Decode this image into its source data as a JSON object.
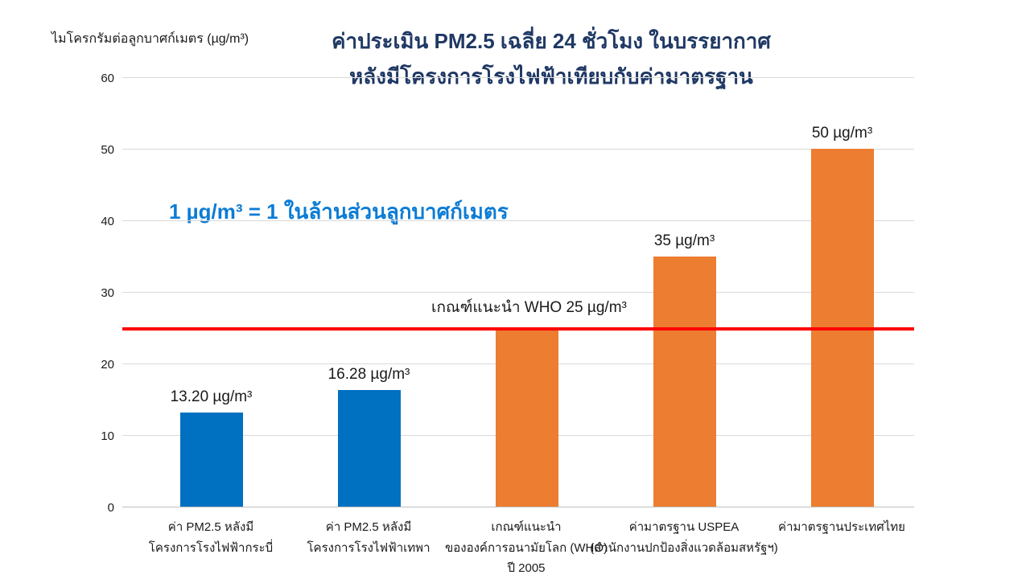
{
  "page": {
    "background": "#FFFFFF"
  },
  "header": {
    "title_line1": "ค่าประเมิน PM2.5 เฉลี่ย 24 ชั่วโมง ในบรรยากาศ",
    "title_line2": "หลังมีโครงการโรงไฟฟ้าเทียบกับค่ามาตรฐาน"
  },
  "annotation": {
    "text": "1 µg/m³ = 1 ในล้านส่วนลูกบาศก์เมตร"
  },
  "colors": {
    "title": "#1F3864",
    "annotation_blue": "#0C7CD5",
    "bar_blue": "#0070C0",
    "bar_orange": "#ED7D31",
    "reference_red": "#FF0000",
    "gridline": "#D9D9D9",
    "text": "#1A1A1A"
  },
  "chart_data": {
    "type": "bar",
    "title": "ค่าประเมิน PM2.5 เฉลี่ย 24 ชั่วโมง ในบรรยากาศ หลังมีโครงการโรงไฟฟ้าเทียบกับค่ามาตรฐาน",
    "ylabel": "ไมโครกรัมต่อลูกบาศก์เมตร (µg/m³)",
    "xlabel": "",
    "ylim": [
      0,
      60
    ],
    "yticks": [
      0,
      10,
      20,
      30,
      40,
      50,
      60
    ],
    "grid": true,
    "legend": "none",
    "categories": [
      "ค่า PM2.5 หลังมี\nโครงการโรงไฟฟ้ากระบี่",
      "ค่า PM2.5 หลังมี\nโครงการโรงไฟฟ้าเทพา",
      "เกณฑ์แนะนำ\nขององค์การอนามัยโลก (WHO)\nปี 2005",
      "ค่ามาตรฐาน USPEA\n(สำนักงานปกป้องสิ่งแวดล้อมสหรัฐฯ)",
      "ค่ามาตรฐานประเทศไทย"
    ],
    "values": [
      13.2,
      16.28,
      25,
      35,
      50
    ],
    "bar_labels": [
      "13.20 µg/m³",
      "16.28 µg/m³",
      "",
      "35 µg/m³",
      "50 µg/m³"
    ],
    "bar_colors": [
      "#0070C0",
      "#0070C0",
      "#ED7D31",
      "#ED7D31",
      "#ED7D31"
    ],
    "reference_line": {
      "value": 25,
      "label": "เกณฑ์แนะนำ WHO 25 µg/m³",
      "color": "#FF0000"
    }
  }
}
